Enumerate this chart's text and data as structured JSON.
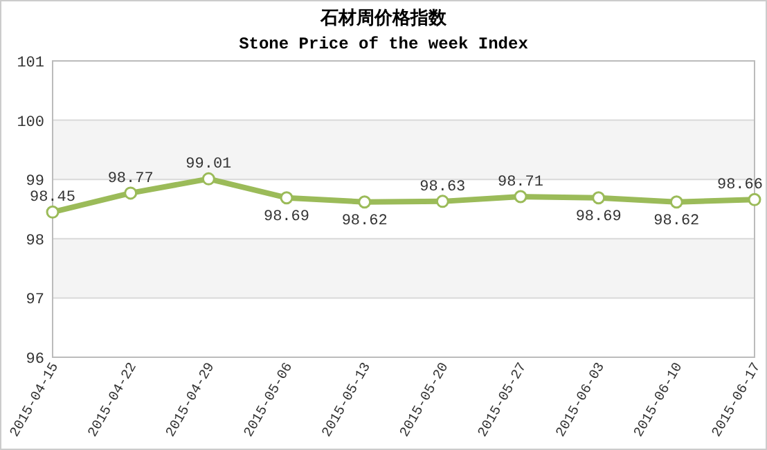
{
  "chart_data": {
    "type": "line",
    "title": "石材周价格指数",
    "subtitle": "Stone Price of the week Index",
    "categories": [
      "2015-04-15",
      "2015-04-22",
      "2015-04-29",
      "2015-05-06",
      "2015-05-13",
      "2015-05-20",
      "2015-05-27",
      "2015-06-03",
      "2015-06-10",
      "2015-06-17"
    ],
    "series": [
      {
        "color": "#9bbb59",
        "values": [
          98.45,
          98.77,
          99.01,
          98.69,
          98.62,
          98.63,
          98.71,
          98.69,
          98.62,
          98.66
        ]
      }
    ],
    "ylim": [
      96,
      101
    ],
    "yticks": [
      96,
      97,
      98,
      99,
      100,
      101
    ],
    "grid": "y",
    "marker": "circle",
    "data_labels": true
  }
}
